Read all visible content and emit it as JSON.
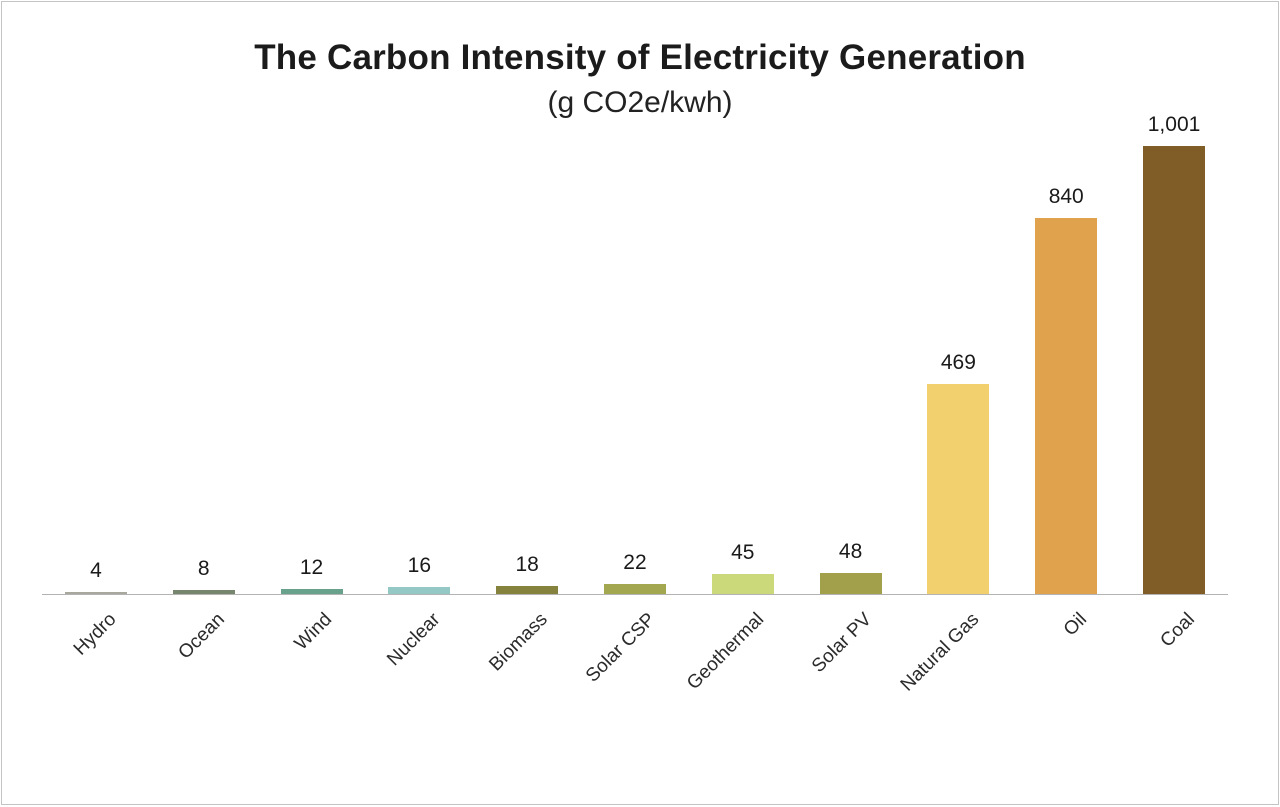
{
  "chart": {
    "title": "The Carbon Intensity of Electricity Generation",
    "subtitle": "(g CO2e/kwh)"
  },
  "chart_data": {
    "type": "bar",
    "title": "The Carbon Intensity of Electricity Generation",
    "subtitle": "(g CO2e/kwh)",
    "categories": [
      "Hydro",
      "Ocean",
      "Wind",
      "Nuclear",
      "Biomass",
      "Solar CSP",
      "Geothermal",
      "Solar PV",
      "Natural Gas",
      "Oil",
      "Coal"
    ],
    "values": [
      4,
      8,
      12,
      16,
      18,
      22,
      45,
      48,
      469,
      840,
      1001
    ],
    "value_labels": [
      "4",
      "8",
      "12",
      "16",
      "18",
      "22",
      "45",
      "48",
      "469",
      "840",
      "1,001"
    ],
    "bar_colors": [
      "#a8a89e",
      "#75856e",
      "#68a18c",
      "#93c8c4",
      "#85823d",
      "#a3a850",
      "#ccd97b",
      "#a3a04c",
      "#f2d06e",
      "#e1a24e",
      "#805d27"
    ],
    "xlabel": "",
    "ylabel": "",
    "ylim": [
      0,
      1050
    ],
    "grid": false,
    "legend": false
  }
}
